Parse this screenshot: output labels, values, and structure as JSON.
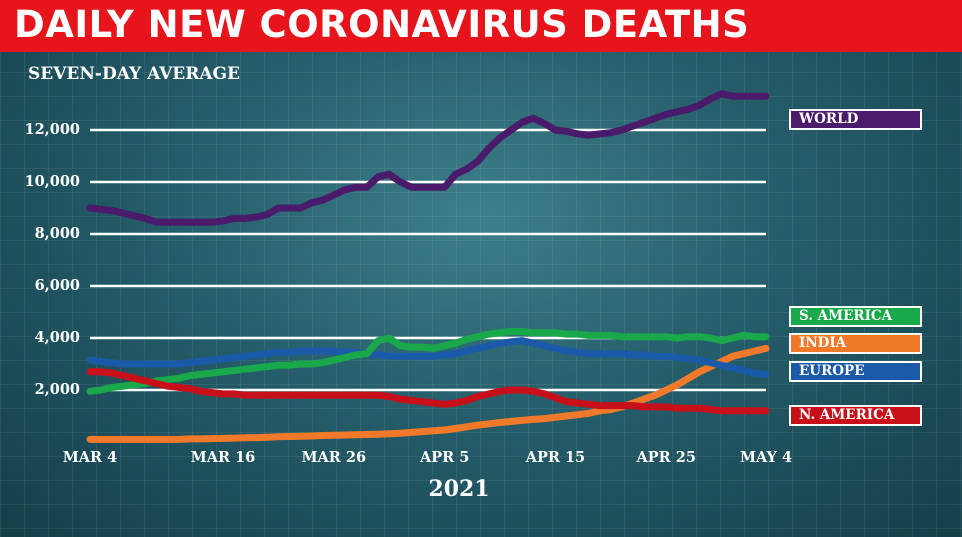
{
  "title": "DAILY NEW CORONAVIRUS DEATHS",
  "subtitle": "SEVEN-DAY AVERAGE",
  "chart_data": {
    "type": "line",
    "title": "DAILY NEW CORONAVIRUS DEATHS",
    "subtitle": "SEVEN-DAY AVERAGE",
    "xlabel": "2021",
    "ylabel": "",
    "ylim": [
      0,
      14000
    ],
    "grid": true,
    "legend_position": "right",
    "yticks": [
      "2,000",
      "4,000",
      "6,000",
      "8,000",
      "10,000",
      "12,000"
    ],
    "ytick_values": [
      2000,
      4000,
      6000,
      8000,
      10000,
      12000
    ],
    "xticks": [
      "MAR 4",
      "MAR 16",
      "MAR 26",
      "APR 5",
      "APR 15",
      "APR 25",
      "MAY 4"
    ],
    "x": [
      "2021-03-04",
      "2021-03-05",
      "2021-03-06",
      "2021-03-07",
      "2021-03-08",
      "2021-03-09",
      "2021-03-10",
      "2021-03-11",
      "2021-03-12",
      "2021-03-13",
      "2021-03-14",
      "2021-03-15",
      "2021-03-16",
      "2021-03-17",
      "2021-03-18",
      "2021-03-19",
      "2021-03-20",
      "2021-03-21",
      "2021-03-22",
      "2021-03-23",
      "2021-03-24",
      "2021-03-25",
      "2021-03-26",
      "2021-03-27",
      "2021-03-28",
      "2021-03-29",
      "2021-03-30",
      "2021-03-31",
      "2021-04-01",
      "2021-04-02",
      "2021-04-03",
      "2021-04-04",
      "2021-04-05",
      "2021-04-06",
      "2021-04-07",
      "2021-04-08",
      "2021-04-09",
      "2021-04-10",
      "2021-04-11",
      "2021-04-12",
      "2021-04-13",
      "2021-04-14",
      "2021-04-15",
      "2021-04-16",
      "2021-04-17",
      "2021-04-18",
      "2021-04-19",
      "2021-04-20",
      "2021-04-21",
      "2021-04-22",
      "2021-04-23",
      "2021-04-24",
      "2021-04-25",
      "2021-04-26",
      "2021-04-27",
      "2021-04-28",
      "2021-04-29",
      "2021-04-30",
      "2021-05-01",
      "2021-05-02",
      "2021-05-03",
      "2021-05-04"
    ],
    "series": [
      {
        "name": "WORLD",
        "color": "#4a1a6b",
        "values": [
          9000,
          8950,
          8900,
          8800,
          8700,
          8600,
          8450,
          8450,
          8450,
          8450,
          8450,
          8450,
          8500,
          8600,
          8600,
          8650,
          8750,
          9000,
          9000,
          9000,
          9200,
          9300,
          9500,
          9700,
          9800,
          9800,
          10200,
          10300,
          10000,
          9800,
          9800,
          9800,
          9800,
          10300,
          10500,
          10800,
          11300,
          11700,
          12000,
          12300,
          12450,
          12250,
          12000,
          11950,
          11850,
          11800,
          11850,
          11900,
          12000,
          12150,
          12300,
          12450,
          12600,
          12700,
          12800,
          12950,
          13200,
          13400,
          13300,
          13300,
          13300,
          13300
        ]
      },
      {
        "name": "S. AMERICA",
        "color": "#19a84a",
        "values": [
          1950,
          2000,
          2100,
          2150,
          2200,
          2250,
          2350,
          2400,
          2450,
          2550,
          2600,
          2650,
          2700,
          2750,
          2800,
          2850,
          2900,
          2950,
          2950,
          3000,
          3000,
          3050,
          3150,
          3250,
          3350,
          3400,
          3900,
          4000,
          3700,
          3650,
          3650,
          3600,
          3700,
          3800,
          3950,
          4050,
          4150,
          4200,
          4250,
          4250,
          4200,
          4200,
          4200,
          4150,
          4150,
          4100,
          4100,
          4100,
          4050,
          4050,
          4050,
          4050,
          4050,
          4000,
          4050,
          4050,
          4000,
          3900,
          4000,
          4100,
          4050,
          4050
        ]
      },
      {
        "name": "INDIA",
        "color": "#f07a2a",
        "values": [
          100,
          100,
          100,
          100,
          100,
          100,
          100,
          100,
          100,
          120,
          120,
          130,
          140,
          150,
          160,
          170,
          180,
          200,
          210,
          220,
          230,
          250,
          260,
          270,
          280,
          290,
          300,
          320,
          340,
          370,
          400,
          430,
          460,
          520,
          580,
          650,
          700,
          750,
          790,
          830,
          870,
          900,
          950,
          1000,
          1050,
          1100,
          1200,
          1250,
          1350,
          1500,
          1650,
          1800,
          2000,
          2200,
          2450,
          2700,
          2900,
          3100,
          3300,
          3400,
          3500,
          3600
        ]
      },
      {
        "name": "EUROPE",
        "color": "#1a5aa8",
        "values": [
          3150,
          3100,
          3050,
          3000,
          3000,
          3000,
          3000,
          3000,
          3000,
          3050,
          3100,
          3150,
          3200,
          3250,
          3300,
          3350,
          3400,
          3450,
          3450,
          3500,
          3500,
          3500,
          3500,
          3450,
          3450,
          3400,
          3350,
          3300,
          3300,
          3300,
          3300,
          3300,
          3350,
          3400,
          3500,
          3600,
          3700,
          3800,
          3850,
          3900,
          3800,
          3700,
          3600,
          3500,
          3450,
          3400,
          3400,
          3400,
          3400,
          3350,
          3350,
          3300,
          3300,
          3250,
          3200,
          3150,
          3050,
          2950,
          2850,
          2750,
          2650,
          2600
        ]
      },
      {
        "name": "N. AMERICA",
        "color": "#c8101a",
        "values": [
          2700,
          2700,
          2650,
          2550,
          2450,
          2350,
          2250,
          2150,
          2100,
          2050,
          1950,
          1900,
          1850,
          1850,
          1800,
          1800,
          1800,
          1800,
          1800,
          1800,
          1800,
          1800,
          1800,
          1800,
          1800,
          1800,
          1800,
          1750,
          1650,
          1600,
          1550,
          1500,
          1450,
          1500,
          1600,
          1750,
          1850,
          1950,
          2000,
          2000,
          1950,
          1850,
          1700,
          1550,
          1500,
          1450,
          1400,
          1400,
          1400,
          1400,
          1350,
          1350,
          1350,
          1300,
          1300,
          1300,
          1250,
          1200,
          1200,
          1200,
          1200,
          1200
        ]
      }
    ]
  }
}
